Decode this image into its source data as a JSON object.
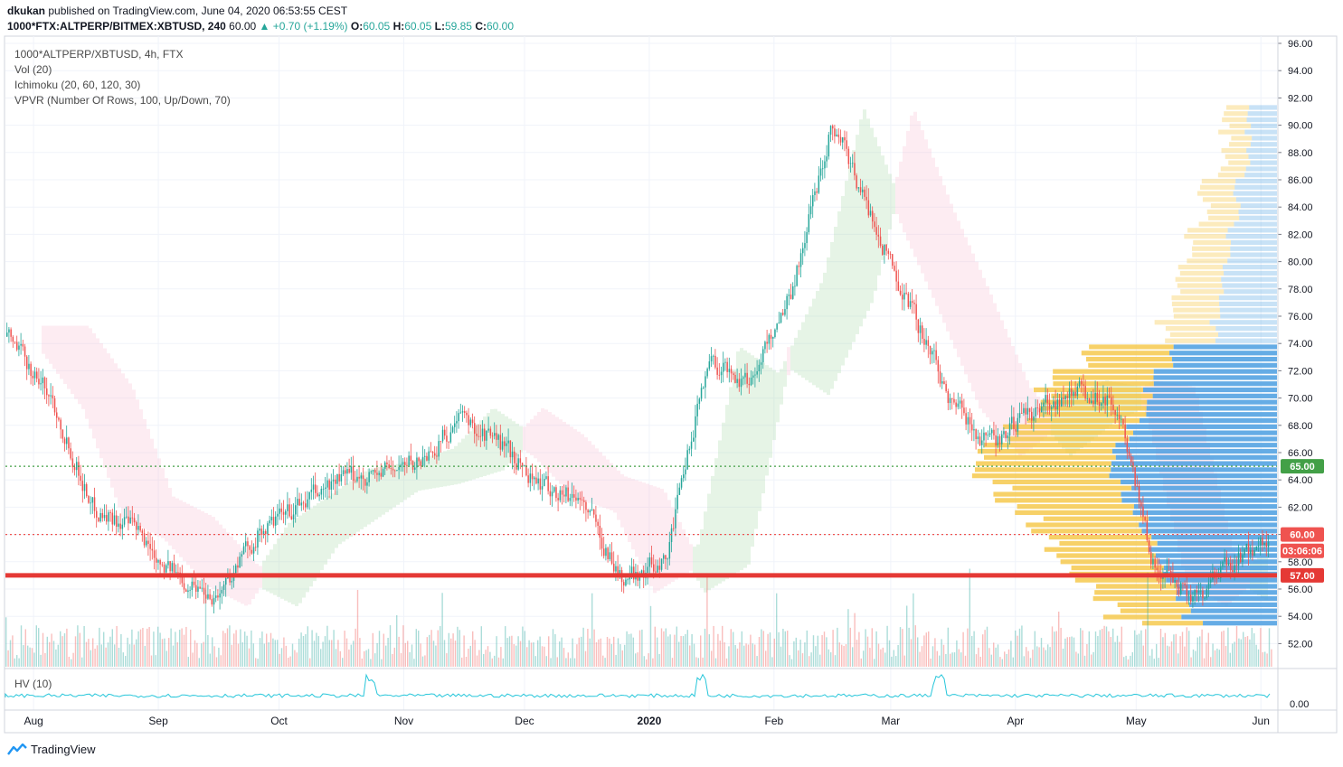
{
  "header": {
    "author": "dkukan",
    "published_text": "published on TradingView.com, June 04, 2020 06:53:55 CEST",
    "symbol": "1000*FTX:ALTPERP/BITMEX:XBTUSD, 240",
    "last": "60.00",
    "change": "+0.70 (+1.19%)",
    "o_label": "O:",
    "o": "60.05",
    "h_label": "H:",
    "h": "60.05",
    "l_label": "L:",
    "l": "59.85",
    "c_label": "C:",
    "c": "60.00"
  },
  "legend": {
    "title": "1000*ALTPERP/XBTUSD, 4h, FTX",
    "vol": "Vol (20)",
    "ichimoku": "Ichimoku (20, 60, 120, 30)",
    "vpvr": "VPVR (Number Of Rows, 100, Up/Down, 70)"
  },
  "hv_pane": {
    "label": "HV (10)",
    "tick": "0.00"
  },
  "footer": {
    "brand": "TradingView"
  },
  "colors": {
    "up": "#26a69a",
    "down": "#ef5350",
    "cloud_green": "#a5d6a7",
    "cloud_red": "#f8bbd0",
    "vpvr_yellow": "#f5c542",
    "vpvr_blue": "#4a9ee0",
    "level_green": "#43a047",
    "level_red": "#e53935",
    "hv_line": "#26c6da"
  },
  "chart_data": {
    "type": "candlestick",
    "title": "1000*ALTPERP/XBTUSD, 4h, FTX",
    "x_ticks": [
      "Aug",
      "Sep",
      "Oct",
      "Nov",
      "Dec",
      "2020",
      "Feb",
      "Mar",
      "Apr",
      "May",
      "Jun"
    ],
    "y_ticks": [
      "96.00",
      "94.00",
      "92.00",
      "90.00",
      "88.00",
      "86.00",
      "84.00",
      "82.00",
      "80.00",
      "78.00",
      "76.00",
      "74.00",
      "72.00",
      "70.00",
      "68.00",
      "66.00",
      "64.00",
      "62.00",
      "60.00",
      "58.00",
      "56.00",
      "54.00",
      "52.00"
    ],
    "ylim": [
      50.5,
      96.5
    ],
    "approx_close_path": {
      "dates": [
        "2019-07-25",
        "2019-08-05",
        "2019-08-15",
        "2019-08-25",
        "2019-09-05",
        "2019-09-15",
        "2019-09-25",
        "2019-10-05",
        "2019-10-15",
        "2019-10-25",
        "2019-11-05",
        "2019-11-15",
        "2019-11-25",
        "2019-12-05",
        "2019-12-15",
        "2019-12-25",
        "2020-01-05",
        "2020-01-15",
        "2020-01-25",
        "2020-02-05",
        "2020-02-15",
        "2020-02-25",
        "2020-03-05",
        "2020-03-15",
        "2020-03-25",
        "2020-04-05",
        "2020-04-15",
        "2020-04-25",
        "2020-05-05",
        "2020-05-15",
        "2020-05-25",
        "2020-06-04"
      ],
      "close": [
        74.5,
        70.0,
        62.0,
        60.5,
        57.0,
        55.5,
        60.0,
        62.0,
        64.0,
        64.5,
        65.5,
        68.5,
        66.5,
        63.5,
        62.5,
        56.5,
        58.5,
        73.0,
        71.0,
        78.0,
        90.5,
        83.0,
        77.0,
        70.0,
        66.5,
        69.0,
        70.5,
        70.0,
        57.5,
        55.5,
        58.0,
        60.0
      ]
    },
    "price_labels": [
      {
        "value": 65.0,
        "label": "65.00",
        "color": "#43a047"
      },
      {
        "value": 60.0,
        "label": "60.00",
        "color": "#ef5350"
      },
      {
        "value": 58.8,
        "label": "03:06:06",
        "color": "#ef5350"
      },
      {
        "value": 57.0,
        "label": "57.00",
        "color": "#e53935"
      }
    ],
    "horizontal_lines": [
      {
        "value": 65.0,
        "style": "dotted",
        "color": "#43a047"
      },
      {
        "value": 60.0,
        "style": "dotted",
        "color": "#ef5350"
      },
      {
        "value": 57.0,
        "style": "solid",
        "color": "#e53935"
      }
    ],
    "volume_profile_peak_price": 65.0,
    "hv_axis_tick": 0.0
  }
}
